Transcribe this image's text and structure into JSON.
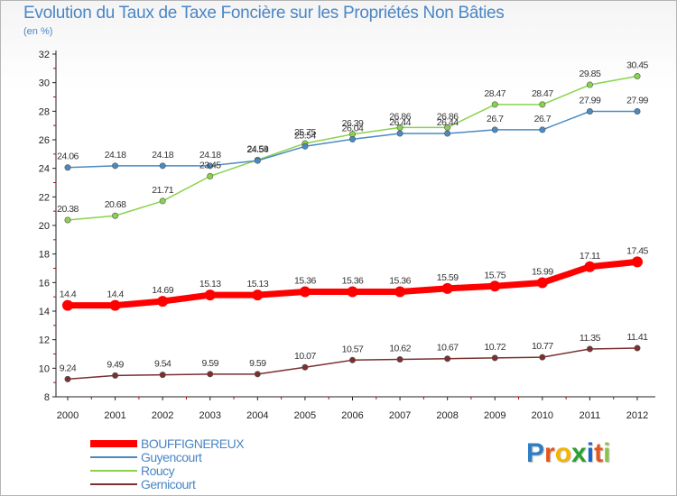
{
  "header": {
    "title": "Evolution du Taux de Taxe Foncière sur les Propriétés Non Bâties",
    "unit": "(en %)"
  },
  "chart_data": {
    "type": "line",
    "title": "Evolution du Taux de Taxe Foncière sur les Propriétés Non Bâties",
    "ylabel": "(en %)",
    "xlabel": "",
    "x": [
      "2000",
      "2001",
      "2002",
      "2003",
      "2004",
      "2005",
      "2006",
      "2007",
      "2008",
      "2009",
      "2010",
      "2011",
      "2012"
    ],
    "ylim": [
      8,
      32
    ],
    "yticks": [
      8,
      10,
      12,
      14,
      16,
      18,
      20,
      22,
      24,
      26,
      28,
      30,
      32
    ],
    "grid": false,
    "legend_position": "bottom-left",
    "series": [
      {
        "name": "BOUFFIGNEREUX",
        "color": "#ff0000",
        "values": [
          14.4,
          14.4,
          14.69,
          15.13,
          15.13,
          15.36,
          15.36,
          15.36,
          15.59,
          15.75,
          15.99,
          17.11,
          17.45
        ],
        "labels": [
          "14.4",
          "14.4",
          "14.69",
          "15.13",
          "15.13",
          "15.36",
          "15.36",
          "15.36",
          "15.59",
          "15.75",
          "15.99",
          "17.11",
          "17.45"
        ]
      },
      {
        "name": "Guyencourt",
        "color": "#4a8ac2",
        "values": [
          24.06,
          24.18,
          24.18,
          24.18,
          24.54,
          25.54,
          26.04,
          26.44,
          26.44,
          26.7,
          26.7,
          27.99,
          27.99
        ],
        "labels": [
          "24.06",
          "24.18",
          "24.18",
          "24.18",
          "24.54",
          "25.54",
          "26.04",
          "26.44",
          "26.44",
          "26.7",
          "26.7",
          "27.99",
          "27.99"
        ]
      },
      {
        "name": "Roucy",
        "color": "#88d34b",
        "values": [
          20.38,
          20.68,
          21.71,
          23.45,
          24.59,
          25.75,
          26.39,
          26.86,
          26.86,
          28.47,
          28.47,
          29.85,
          30.45
        ],
        "labels": [
          "20.38",
          "20.68",
          "21.71",
          "23.45",
          "24.59",
          "25.75",
          "26.39",
          "26.86",
          "26.86",
          "28.47",
          "28.47",
          "29.85",
          "30.45"
        ]
      },
      {
        "name": "Gernicourt",
        "color": "#7b2f2f",
        "values": [
          9.24,
          9.49,
          9.54,
          9.59,
          9.59,
          10.07,
          10.57,
          10.62,
          10.67,
          10.72,
          10.77,
          11.35,
          11.41
        ],
        "labels": [
          "9.24",
          "9.49",
          "9.54",
          "9.59",
          "9.59",
          "10.07",
          "10.57",
          "10.62",
          "10.67",
          "10.72",
          "10.77",
          "11.35",
          "11.41"
        ]
      }
    ]
  },
  "logo": {
    "letters": [
      "P",
      "r",
      "o",
      "x",
      "i",
      "t",
      "i"
    ],
    "colors": [
      "#2f7fc4",
      "#e8541e",
      "#f4b400",
      "#2aa12f",
      "#1a66c6",
      "#e8541e",
      "#8bc34a"
    ]
  }
}
